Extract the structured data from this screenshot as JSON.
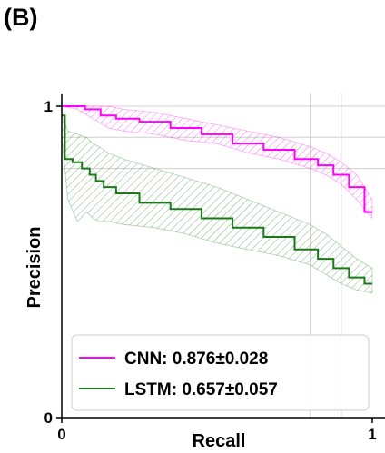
{
  "panel_label": "(B)",
  "chart_data": {
    "type": "line",
    "xlabel": "Recall",
    "ylabel": "Precision",
    "xlim": [
      0,
      1
    ],
    "ylim": [
      0,
      1
    ],
    "x_ticks": [
      {
        "value": 0,
        "label": "0"
      },
      {
        "value": 1,
        "label": "1"
      }
    ],
    "y_ticks": [
      {
        "value": 0,
        "label": "0"
      },
      {
        "value": 1,
        "label": "1"
      }
    ],
    "grid": true,
    "grid_x_values": [
      0.8,
      0.9
    ],
    "grid_y_values": [
      0.9,
      0.8
    ],
    "legend_position": "bottom",
    "series": [
      {
        "name": "CNN: 0.876±0.028",
        "color": "#ff00ff",
        "hatch": "stripes",
        "x": [
          0.0,
          0.05,
          0.1,
          0.15,
          0.2,
          0.3,
          0.4,
          0.5,
          0.6,
          0.7,
          0.8,
          0.85,
          0.9,
          0.95,
          1.0
        ],
        "y": [
          1.0,
          1.0,
          0.99,
          0.97,
          0.96,
          0.95,
          0.93,
          0.91,
          0.88,
          0.86,
          0.83,
          0.81,
          0.78,
          0.74,
          0.66
        ],
        "upper": [
          1.0,
          1.0,
          1.0,
          1.0,
          0.99,
          0.98,
          0.96,
          0.94,
          0.92,
          0.9,
          0.87,
          0.85,
          0.82,
          0.78,
          0.7
        ],
        "lower": [
          1.0,
          0.99,
          0.96,
          0.93,
          0.92,
          0.91,
          0.89,
          0.88,
          0.85,
          0.83,
          0.8,
          0.78,
          0.75,
          0.7,
          0.64
        ]
      },
      {
        "name": "LSTM: 0.657±0.057",
        "color": "#1a7a1a",
        "hatch": "stripes",
        "x": [
          0.0,
          0.02,
          0.05,
          0.08,
          0.1,
          0.12,
          0.15,
          0.2,
          0.3,
          0.4,
          0.5,
          0.6,
          0.7,
          0.8,
          0.85,
          0.9,
          0.95,
          1.0
        ],
        "y": [
          0.97,
          0.83,
          0.82,
          0.8,
          0.78,
          0.76,
          0.74,
          0.72,
          0.69,
          0.67,
          0.64,
          0.61,
          0.58,
          0.54,
          0.51,
          0.48,
          0.45,
          0.43
        ],
        "upper": [
          0.97,
          0.92,
          0.91,
          0.9,
          0.88,
          0.87,
          0.85,
          0.83,
          0.8,
          0.77,
          0.74,
          0.7,
          0.66,
          0.62,
          0.59,
          0.55,
          0.51,
          0.48
        ],
        "lower": [
          0.9,
          0.7,
          0.63,
          0.66,
          0.64,
          0.63,
          0.63,
          0.62,
          0.61,
          0.59,
          0.56,
          0.54,
          0.52,
          0.49,
          0.46,
          0.43,
          0.41,
          0.4
        ]
      }
    ]
  }
}
